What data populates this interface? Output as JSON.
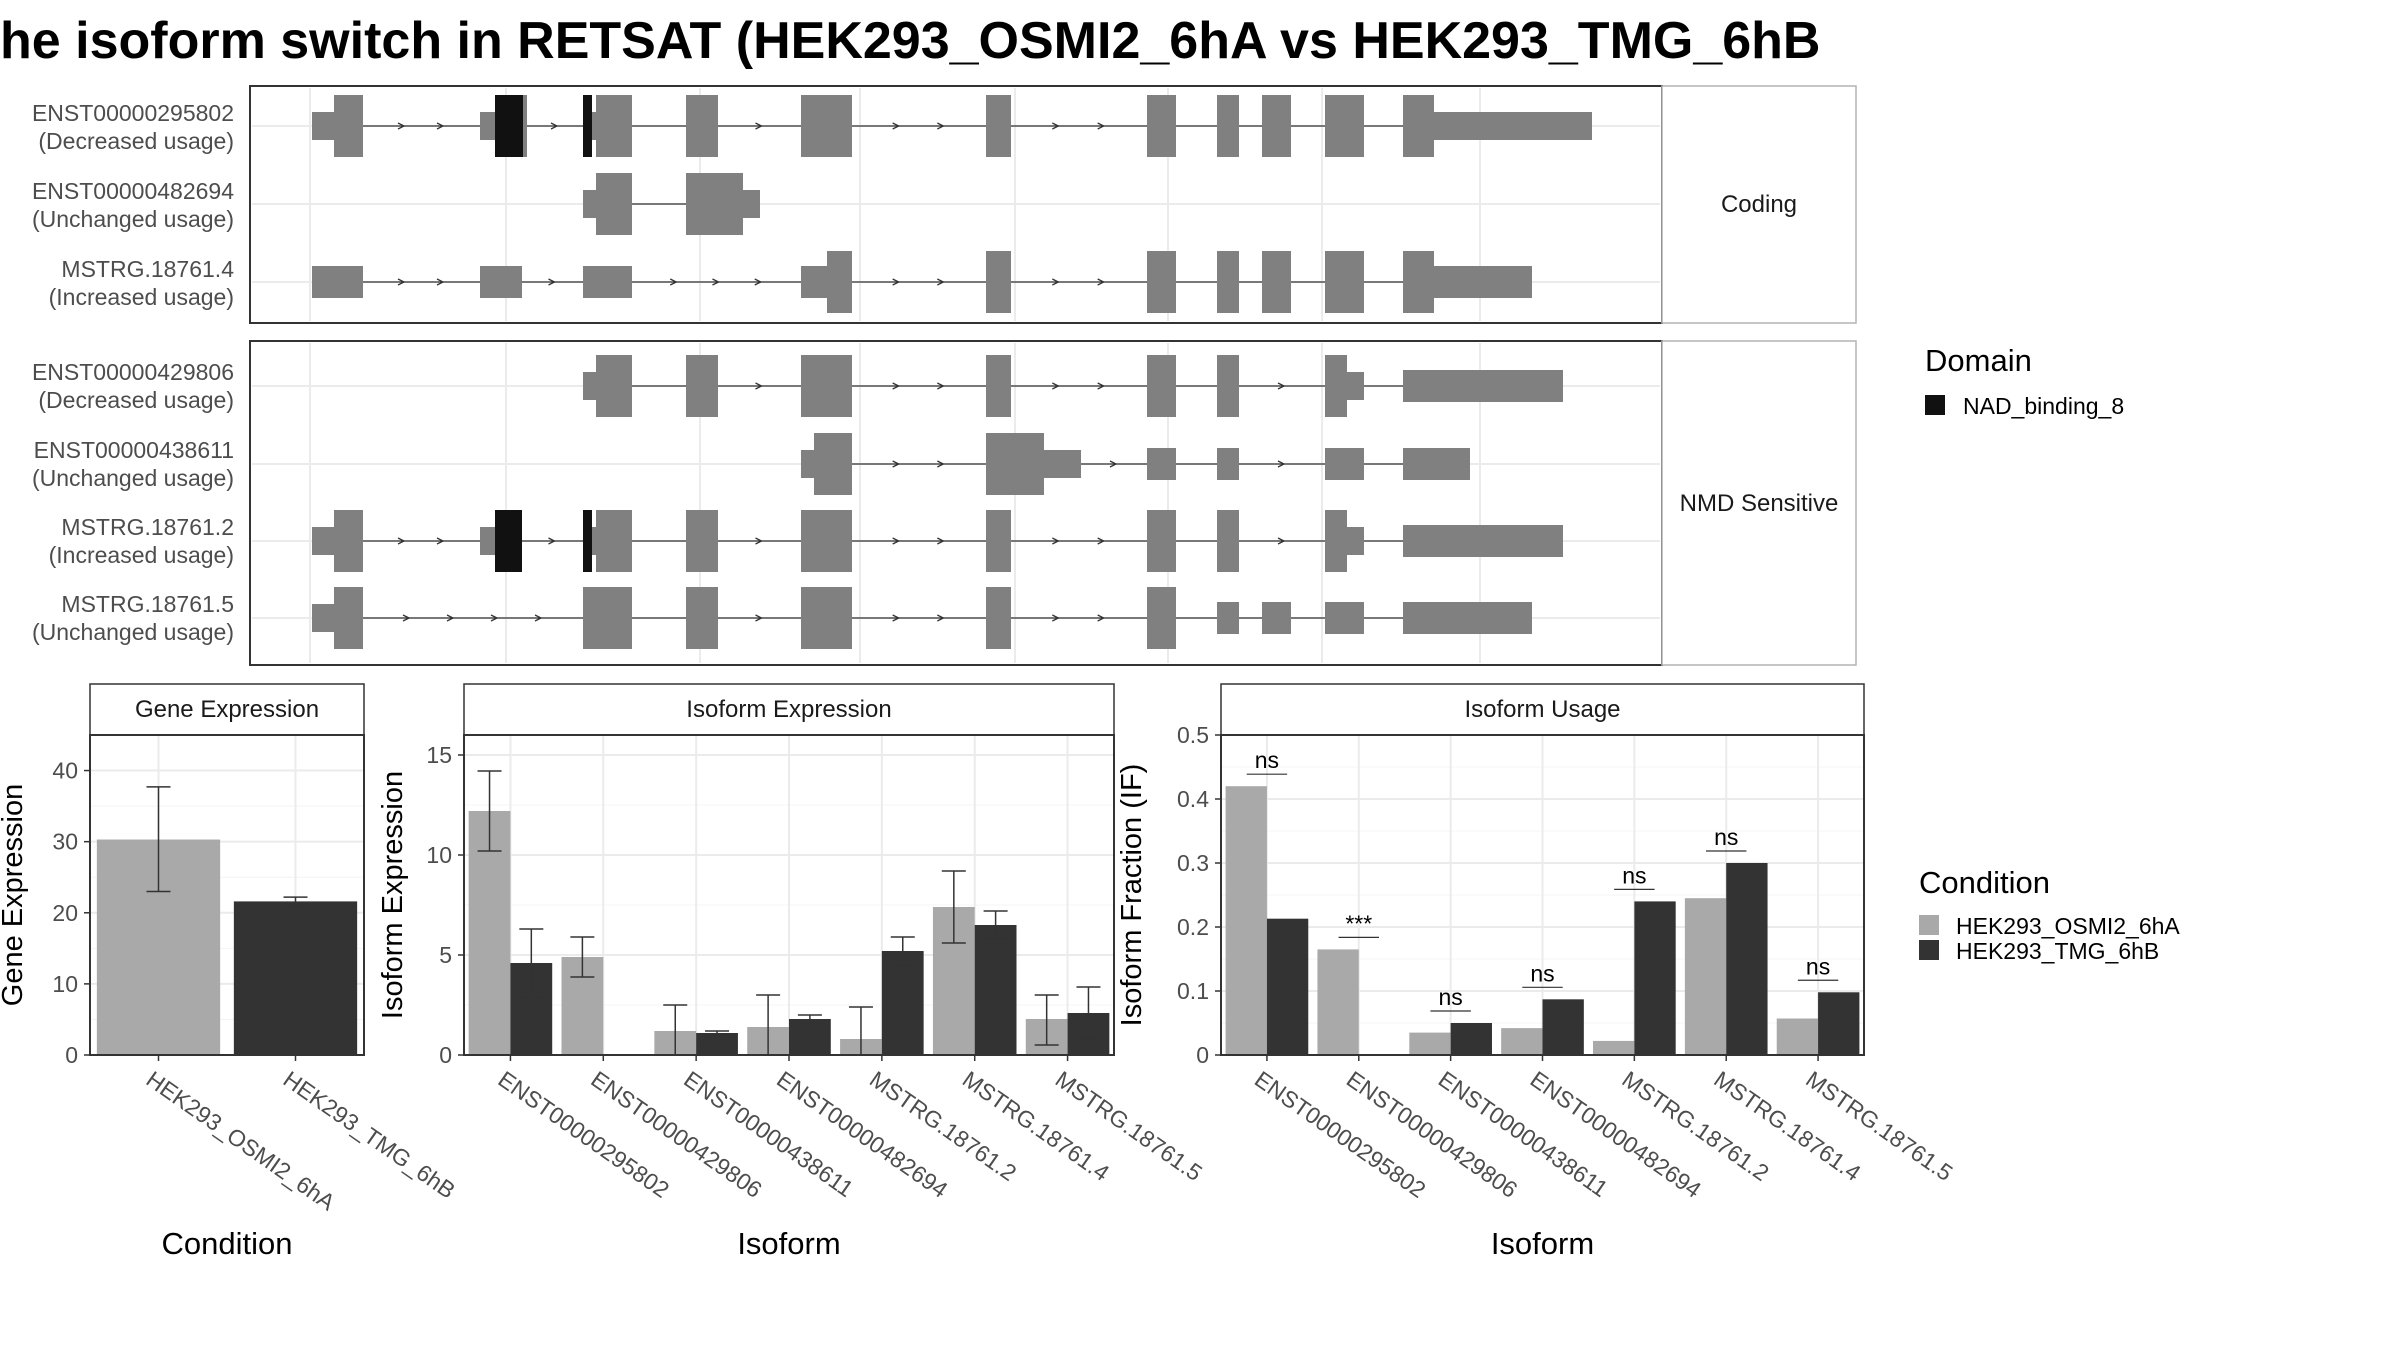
{
  "title": "he isoform switch in RETSAT (HEK293_OSMI2_6hA vs HEK293_TMG_6hB",
  "colors": {
    "condA": "#a9a9a9",
    "condB": "#333333",
    "exon": "#808080",
    "domain": "#111111",
    "grid": "#ebebeb",
    "frame": "#333333",
    "strip": "#ffffff"
  },
  "structure": {
    "groups": [
      {
        "label": "Coding",
        "transcripts": [
          {
            "id": "ENST00000295802",
            "usage": "(Decreased usage)"
          },
          {
            "id": "ENST00000482694",
            "usage": "(Unchanged usage)"
          },
          {
            "id": "MSTRG.18761.4",
            "usage": "(Increased usage)"
          }
        ]
      },
      {
        "label": "NMD Sensitive",
        "transcripts": [
          {
            "id": "ENST00000429806",
            "usage": "(Decreased usage)"
          },
          {
            "id": "ENST00000438611",
            "usage": "(Unchanged usage)"
          },
          {
            "id": "MSTRG.18761.2",
            "usage": "(Increased usage)"
          },
          {
            "id": "MSTRG.18761.5",
            "usage": "(Unchanged usage)"
          }
        ]
      }
    ]
  },
  "legends": {
    "domain": {
      "title": "Domain",
      "items": [
        "NAD_binding_8"
      ]
    },
    "condition": {
      "title": "Condition",
      "items": [
        "HEK293_OSMI2_6hA",
        "HEK293_TMG_6hB"
      ]
    }
  },
  "chart_data": [
    {
      "type": "bar",
      "title": "Gene Expression",
      "xlabel": "Condition",
      "ylabel": "Gene Expression",
      "ylim": [
        0,
        45
      ],
      "yticks": [
        0,
        10,
        20,
        30,
        40
      ],
      "categories": [
        "HEK293_OSMI2_6hA",
        "HEK293_TMG_6hB"
      ],
      "values": [
        30.3,
        21.6
      ],
      "error_low": [
        23.0,
        21.0
      ],
      "error_high": [
        37.7,
        22.2
      ]
    },
    {
      "type": "bar",
      "title": "Isoform Expression",
      "xlabel": "Isoform",
      "ylabel": "Isoform Expression",
      "ylim": [
        0,
        16
      ],
      "yticks": [
        0,
        5,
        10,
        15
      ],
      "categories": [
        "ENST00000295802",
        "ENST00000429806",
        "ENST00000438611",
        "ENST00000482694",
        "MSTRG.18761.2",
        "MSTRG.18761.4",
        "MSTRG.18761.5"
      ],
      "series": [
        {
          "name": "HEK293_OSMI2_6hA",
          "values": [
            12.2,
            4.9,
            1.2,
            1.4,
            0.8,
            7.4,
            1.8
          ],
          "error_low": [
            10.2,
            3.9,
            0.0,
            0.0,
            0.0,
            5.6,
            0.5
          ],
          "error_high": [
            14.2,
            5.9,
            2.5,
            3.0,
            2.4,
            9.2,
            3.0
          ]
        },
        {
          "name": "HEK293_TMG_6hB",
          "values": [
            4.6,
            0.0,
            1.1,
            1.8,
            5.2,
            6.5,
            2.1
          ],
          "error_low": [
            2.9,
            0.0,
            1.0,
            1.6,
            4.5,
            5.8,
            0.8
          ],
          "error_high": [
            6.3,
            0.0,
            1.2,
            2.0,
            5.9,
            7.2,
            3.4
          ]
        }
      ]
    },
    {
      "type": "bar",
      "title": "Isoform Usage",
      "xlabel": "Isoform",
      "ylabel": "Isoform Fraction (IF)",
      "ylim": [
        0,
        0.5
      ],
      "yticks": [
        0.0,
        0.1,
        0.2,
        0.3,
        0.4,
        0.5
      ],
      "categories": [
        "ENST00000295802",
        "ENST00000429806",
        "ENST00000438611",
        "ENST00000482694",
        "MSTRG.18761.2",
        "MSTRG.18761.4",
        "MSTRG.18761.5"
      ],
      "series": [
        {
          "name": "HEK293_OSMI2_6hA",
          "values": [
            0.42,
            0.165,
            0.035,
            0.042,
            0.022,
            0.245,
            0.057
          ]
        },
        {
          "name": "HEK293_TMG_6hB",
          "values": [
            0.213,
            0.0,
            0.05,
            0.087,
            0.24,
            0.3,
            0.098
          ]
        }
      ],
      "significance": [
        "ns",
        "***",
        "ns",
        "ns",
        "ns",
        "ns",
        "ns"
      ]
    }
  ]
}
